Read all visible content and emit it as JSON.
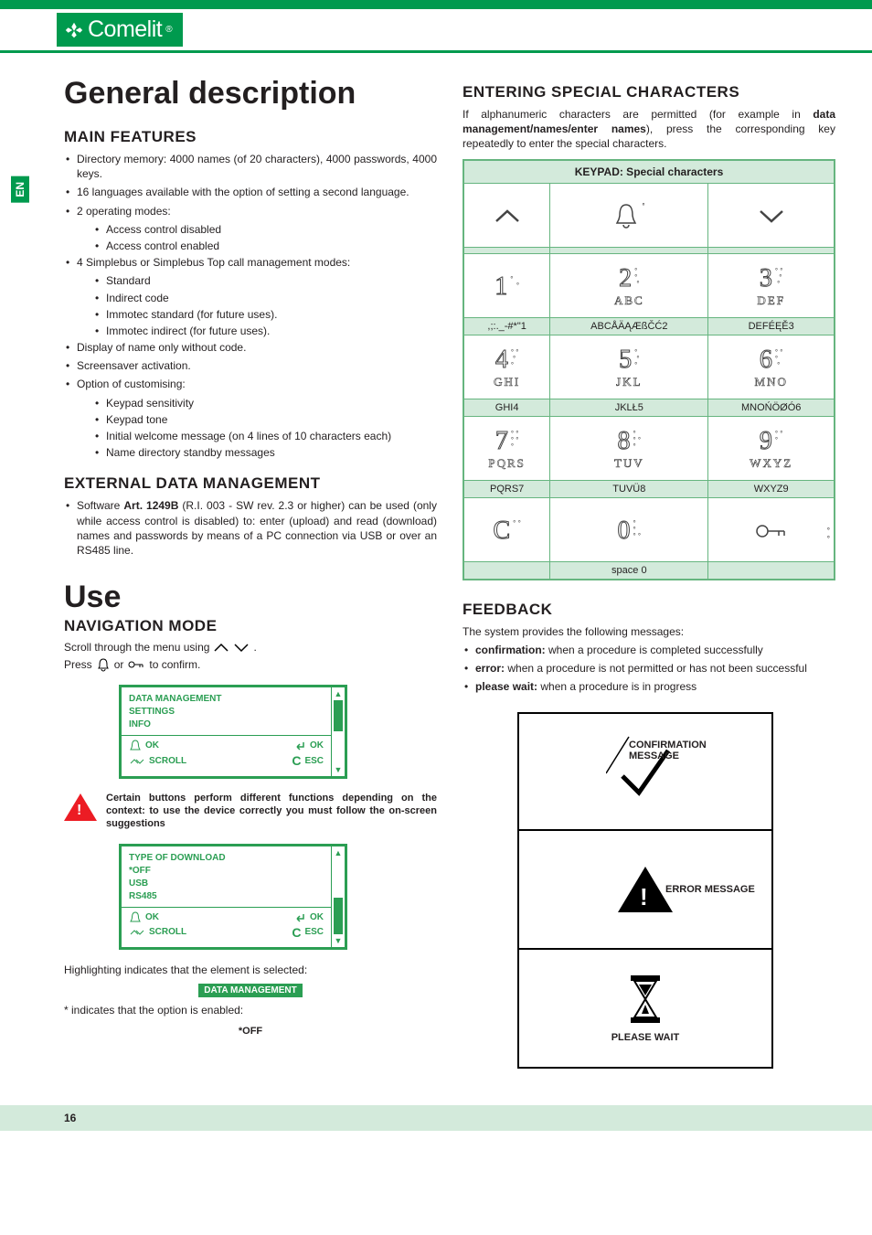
{
  "brand": "Comelit",
  "side_tab": "EN",
  "page_number": "16",
  "colors": {
    "brand_green": "#009a4e",
    "screen_green": "#2b9e53",
    "pale_green": "#d3eadb",
    "border_green": "#66b57f",
    "warn_red": "#ec1c24",
    "text": "#231f20"
  },
  "left": {
    "h1": "General description",
    "main_features": {
      "title": "MAIN FEATURES",
      "items": [
        "Directory memory: 4000 names (of 20 characters), 4000 passwords, 4000 keys.",
        "16 languages available with the option of setting a second language.",
        "2 operating modes:",
        "4 Simplebus or Simplebus Top call management modes:",
        "Display of name only without code.",
        "Screensaver activation.",
        "Option of customising:"
      ],
      "sub_modes": [
        "Access control disabled",
        "Access control enabled"
      ],
      "sub_call": [
        "Standard",
        "Indirect code",
        "Immotec standard (for future uses).",
        "Immotec indirect (for future uses)."
      ],
      "sub_custom": [
        "Keypad sensitivity",
        "Keypad tone",
        "Initial welcome message (on 4 lines of 10 characters each)",
        "Name directory standby messages"
      ]
    },
    "external": {
      "title": "EXTERNAL DATA MANAGEMENT",
      "bullet_prefix": "Software ",
      "bullet_bold": "Art. 1249B",
      "bullet_rest": " (R.I. 003 - SW rev. 2.3 or higher) can be used (only while access control is disabled) to: enter (upload) and read (download) names and passwords by means of a PC connection via USB or over an RS485 line."
    },
    "use": {
      "h1": "Use",
      "nav_title": "NAVIGATION MODE",
      "scroll_line_a": "Scroll through the menu using ",
      "scroll_line_b": ".",
      "press_a": "Press ",
      "press_b": " or ",
      "press_c": " to confirm."
    },
    "screen1": {
      "l1": "DATA MANAGEMENT",
      "l2": "SETTINGS",
      "l3": "INFO",
      "ok": "OK",
      "scroll": "SCROLL",
      "esc": "ESC"
    },
    "note": "Certain buttons perform different functions depending on the context: to use the device correctly you must follow the on-screen suggestions",
    "screen2": {
      "l1": "TYPE OF DOWNLOAD",
      "l2": "*OFF",
      "l3": "USB",
      "l4": "RS485",
      "ok": "OK",
      "scroll": "SCROLL",
      "esc": "ESC"
    },
    "highlight_text": "Highlighting indicates that the element is selected:",
    "highlight_pill": "DATA MANAGEMENT",
    "asterisk_text": "* indicates that the option is enabled:",
    "asterisk_val": "*OFF"
  },
  "right": {
    "title": "ENTERING SPECIAL CHARACTERS",
    "intro_a": "If alphanumeric characters are permitted (for example in ",
    "intro_bold": "data management/names/enter names",
    "intro_b": "), press the corresponding key repeatedly to enter the special characters.",
    "kp_header": "KEYPAD: Special characters",
    "rows": [
      {
        "keys": [
          {
            "type": "up"
          },
          {
            "type": "bell"
          },
          {
            "type": "down"
          }
        ],
        "labels": [
          "",
          "",
          ""
        ]
      },
      {
        "keys": [
          {
            "num": "1",
            "dots": "°  \n   °",
            "sub": ""
          },
          {
            "num": "2",
            "dots": "°\n°\n °",
            "sub": "ABC"
          },
          {
            "num": "3",
            "dots": "° °\n  °\n °",
            "sub": "DEF"
          }
        ],
        "labels": [
          ",;:._-#*\"1",
          "ABCÅÄĄÆßČĆ2",
          "DEFÉĘĚ3"
        ]
      },
      {
        "keys": [
          {
            "num": "4",
            "dots": "° °\n °\n°",
            "sub": "GHI"
          },
          {
            "num": "5",
            "dots": "°\n °\n°",
            "sub": "JKL"
          },
          {
            "num": "6",
            "dots": "° °\n°\n °",
            "sub": "MNO"
          }
        ],
        "labels": [
          "GHI4",
          "JKLŁ5",
          "MNOŃÖØÓ6"
        ]
      },
      {
        "keys": [
          {
            "num": "7",
            "dots": "° °\n° °\n°",
            "sub": "PQRS"
          },
          {
            "num": "8",
            "dots": "°\n° °\n°",
            "sub": "TUV"
          },
          {
            "num": "9",
            "dots": "° °\n°\n",
            "sub": "WXYZ"
          }
        ],
        "labels": [
          "PQRS7",
          "TUVÜ8",
          "WXYZ9"
        ]
      },
      {
        "keys": [
          {
            "num": "C",
            "dots": "° °",
            "sub": ""
          },
          {
            "num": "0",
            "dots": "°\n°\n° °",
            "sub": ""
          },
          {
            "type": "key-icon"
          }
        ],
        "labels": [
          "",
          "space 0",
          ""
        ]
      }
    ],
    "feedback": {
      "title": "FEEDBACK",
      "intro": "The system provides the following messages:",
      "items": [
        {
          "b": "confirmation:",
          "t": " when a procedure is completed successfully"
        },
        {
          "b": "error:",
          "t": " when a procedure is not permitted or has not been successful"
        },
        {
          "b": "please wait:",
          "t": " when a procedure is in progress"
        }
      ],
      "box1": "CONFIRMATION MESSAGE",
      "box2": "ERROR MESSAGE",
      "box3": "PLEASE WAIT"
    }
  }
}
